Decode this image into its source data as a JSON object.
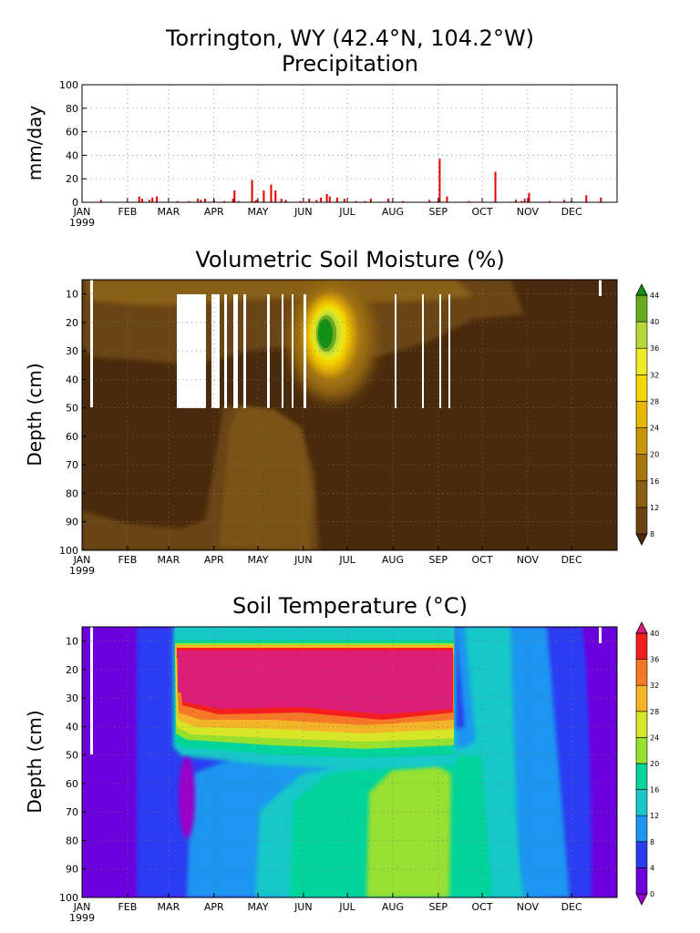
{
  "figure": {
    "title_line1": "Torrington, WY   (42.4°N, 104.2°W)",
    "title_line2": "Precipitation",
    "year": "1999",
    "months": [
      "JAN",
      "FEB",
      "MAR",
      "APR",
      "MAY",
      "JUN",
      "JUL",
      "AUG",
      "SEP",
      "OCT",
      "NOV",
      "DEC"
    ]
  },
  "chart_data": [
    {
      "type": "bar",
      "title": "Precipitation",
      "xlabel": "",
      "ylabel": "mm/day",
      "ylim": [
        0,
        100
      ],
      "yticks": [
        0,
        20,
        40,
        60,
        80,
        100
      ],
      "grid": true,
      "color": "#e00000",
      "x_units": "day of year 1999",
      "x": [
        14,
        40,
        42,
        47,
        49,
        52,
        66,
        74,
        80,
        82,
        85,
        91,
        98,
        104,
        105,
        108,
        117,
        119,
        120,
        125,
        130,
        133,
        137,
        140,
        150,
        156,
        161,
        164,
        168,
        170,
        175,
        180,
        188,
        194,
        198,
        210,
        220,
        238,
        244,
        245,
        250,
        265,
        283,
        297,
        301,
        303,
        306,
        320,
        330,
        335,
        345,
        355
      ],
      "values": [
        2,
        5,
        3,
        2,
        4,
        5,
        1,
        1,
        3,
        2,
        3,
        2,
        1,
        3,
        10,
        1,
        19,
        1,
        2,
        10,
        15,
        10,
        3,
        2,
        1,
        3,
        2,
        4,
        7,
        5,
        4,
        3,
        1,
        1,
        3,
        3,
        1,
        2,
        1,
        37,
        5,
        1,
        26,
        2,
        1,
        3,
        8,
        1,
        2,
        1,
        6,
        4
      ]
    },
    {
      "type": "heatmap",
      "title": "Volumetric Soil Moisture (%)",
      "xlabel": "",
      "ylabel": "Depth (cm)",
      "ylim": [
        100,
        5
      ],
      "yticks": [
        10,
        20,
        30,
        40,
        50,
        60,
        70,
        80,
        90,
        100
      ],
      "colorbar_levels": [
        8,
        12,
        16,
        20,
        24,
        28,
        32,
        36,
        40,
        44
      ],
      "colorbar_colors": [
        "#4a2a0c",
        "#6b4412",
        "#8a5e14",
        "#a8780e",
        "#c99608",
        "#e8b800",
        "#f2d800",
        "#ecec28",
        "#b5d838",
        "#6aaa1e",
        "#159015"
      ]
    },
    {
      "type": "heatmap",
      "title": "Soil Temperature (°C)",
      "xlabel": "",
      "ylabel": "Depth (cm)",
      "ylim": [
        100,
        5
      ],
      "yticks": [
        10,
        20,
        30,
        40,
        50,
        60,
        70,
        80,
        90,
        100
      ],
      "colorbar_levels": [
        0,
        4,
        8,
        12,
        16,
        20,
        24,
        28,
        32,
        36,
        40
      ],
      "colorbar_colors": [
        "#9a00c8",
        "#6c00dc",
        "#2a3cf2",
        "#1e96f0",
        "#18c8c8",
        "#00d49a",
        "#98e030",
        "#d8e628",
        "#f4b428",
        "#f47828",
        "#f41e1e",
        "#dc1e78"
      ]
    }
  ]
}
